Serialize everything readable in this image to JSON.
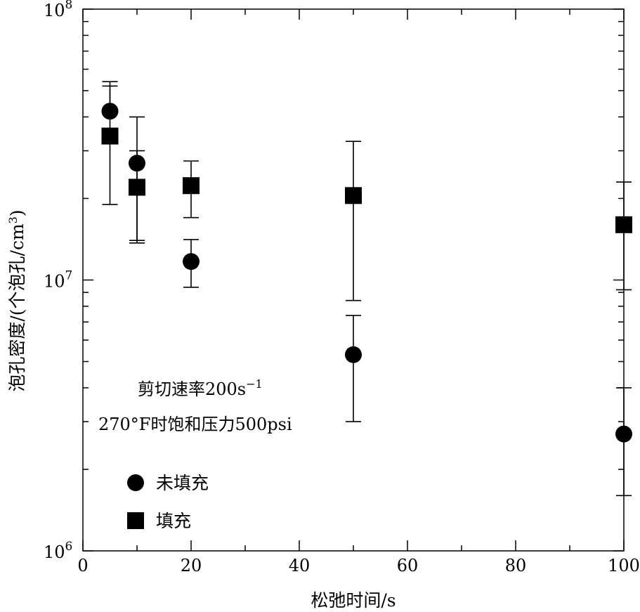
{
  "chart_data": {
    "type": "scatter",
    "xlabel": "松弛时间/s",
    "ylabel": "泡孔密度/(个泡孔/cm",
    "ylabel_sup": "3",
    "ylabel_close": ")",
    "xlim": [
      0,
      100
    ],
    "ylim": [
      1000000,
      100000000
    ],
    "yscale": "log",
    "x_ticks": [
      0,
      20,
      40,
      60,
      80,
      100
    ],
    "x_tick_labels": [
      "0",
      "20",
      "40",
      "60",
      "80",
      "100"
    ],
    "y_ticks": [
      {
        "value": 1000000,
        "base": "10",
        "exp": "6"
      },
      {
        "value": 10000000,
        "base": "10",
        "exp": "7"
      },
      {
        "value": 100000000,
        "base": "10",
        "exp": "8"
      }
    ],
    "annotations": {
      "line1": "剪切速率200s",
      "line1_sup": "−1",
      "line2": "270°F时饱和压力500psi"
    },
    "series": [
      {
        "name": "未填充",
        "marker": "circle",
        "color": "#000000",
        "points": [
          {
            "x": 5,
            "y": 42000000,
            "err_low": 42000000,
            "err_high": 54000000
          },
          {
            "x": 10,
            "y": 27000000,
            "err_low": 14000000,
            "err_high": 40000000
          },
          {
            "x": 20,
            "y": 11700000,
            "err_low": 9400000,
            "err_high": 14100000
          },
          {
            "x": 50,
            "y": 5300000,
            "err_low": 3000000,
            "err_high": 7400000
          },
          {
            "x": 100,
            "y": 2700000,
            "err_low": 1600000,
            "err_high": 4000000
          }
        ]
      },
      {
        "name": "填充",
        "marker": "square",
        "color": "#000000",
        "points": [
          {
            "x": 5,
            "y": 34000000,
            "err_low": 19000000,
            "err_high": 52000000
          },
          {
            "x": 10,
            "y": 22000000,
            "err_low": 13700000,
            "err_high": 30000000
          },
          {
            "x": 20,
            "y": 22300000,
            "err_low": 17000000,
            "err_high": 27500000
          },
          {
            "x": 50,
            "y": 20500000,
            "err_low": 8400000,
            "err_high": 32500000
          },
          {
            "x": 100,
            "y": 16000000,
            "err_low": 9200000,
            "err_high": 23000000
          }
        ]
      }
    ],
    "legend": {
      "placement": "bottom-left",
      "entries": [
        "未填充",
        "填充"
      ]
    },
    "grid": false
  }
}
